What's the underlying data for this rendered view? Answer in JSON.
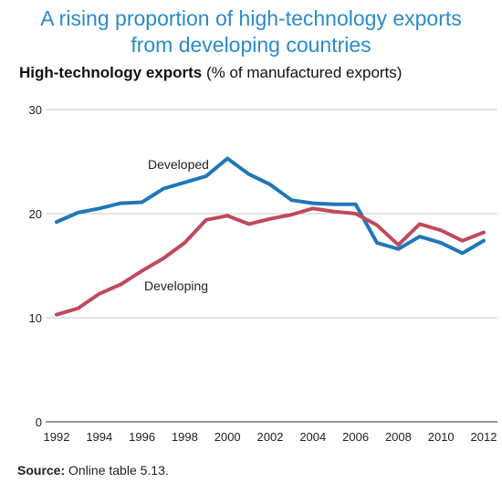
{
  "header": {
    "title_line1": "A rising proportion of high-technology exports",
    "title_line2": "from developing countries",
    "subtitle_bold": "High-technology exports",
    "subtitle_rest": " (% of manufactured exports)"
  },
  "footer": {
    "source_bold": "Source:",
    "source_rest": " Online table 5.13."
  },
  "colors": {
    "title": "#2a8bc8",
    "developed": "#1f77b8",
    "developing": "#c0495b",
    "grid": "#c8c8c8"
  },
  "chart_data": {
    "type": "line",
    "title": "High-technology exports (% of manufactured exports)",
    "xlabel": "",
    "ylabel": "",
    "x": [
      1992,
      1993,
      1994,
      1995,
      1996,
      1997,
      1998,
      1999,
      2000,
      2001,
      2002,
      2003,
      2004,
      2005,
      2006,
      2007,
      2008,
      2009,
      2010,
      2011,
      2012
    ],
    "xticks": [
      "1992",
      "1994",
      "1996",
      "1998",
      "2000",
      "2002",
      "2004",
      "2006",
      "2008",
      "2010",
      "2012"
    ],
    "yticks": [
      "0",
      "10",
      "20",
      "30"
    ],
    "ylim": [
      0,
      30
    ],
    "xlim": [
      1992,
      2012
    ],
    "grid": "horizontal",
    "series": [
      {
        "name": "Developed",
        "color": "#1f77b8",
        "values": [
          19.2,
          20.1,
          20.5,
          21.0,
          21.1,
          22.4,
          23.0,
          23.6,
          25.3,
          23.8,
          22.8,
          21.3,
          21.0,
          20.9,
          20.9,
          17.2,
          16.6,
          17.8,
          17.2,
          16.2,
          17.4
        ]
      },
      {
        "name": "Developing",
        "color": "#c0495b",
        "values": [
          10.3,
          10.9,
          12.3,
          13.2,
          14.5,
          15.7,
          17.2,
          19.4,
          19.8,
          19.0,
          19.5,
          19.9,
          20.5,
          20.2,
          20.0,
          18.9,
          17.0,
          19.0,
          18.4,
          17.4,
          18.2
        ]
      }
    ]
  }
}
